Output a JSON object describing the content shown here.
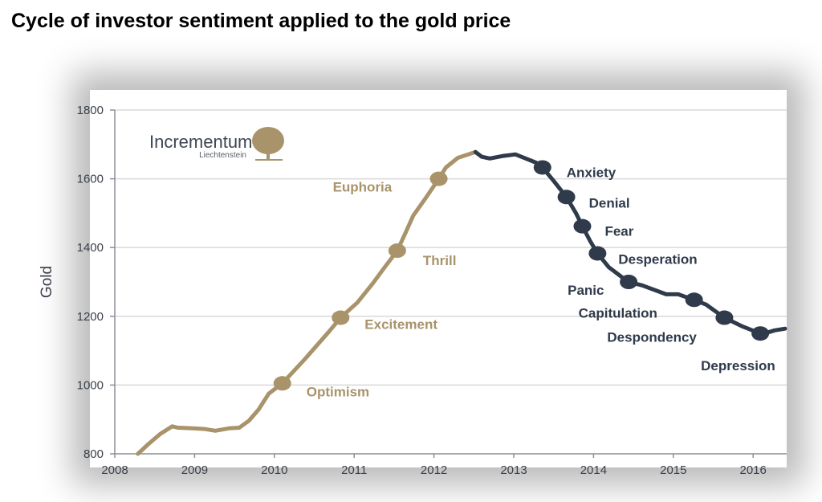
{
  "title": "Cycle of investor sentiment applied to the gold price",
  "logo": {
    "name": "Incrementum",
    "sub": "Liechtenstein",
    "icon": "tree-icon"
  },
  "colors": {
    "gold": "#a8936a",
    "dark": "#2f3a4b",
    "grid": "#d9d9d9",
    "axis": "#8a8f96"
  },
  "chart_data": {
    "type": "line",
    "title": "Cycle of investor sentiment applied to the gold price",
    "ylabel": "Gold",
    "xlabel": "",
    "xlim": [
      2008,
      2016.42
    ],
    "ylim": [
      800,
      1800
    ],
    "xticks": [
      "2008",
      "2009",
      "2010",
      "2011",
      "2012",
      "2013",
      "2014",
      "2015",
      "2016"
    ],
    "yticks": [
      "800",
      "1000",
      "1200",
      "1400",
      "1600",
      "1800"
    ],
    "grid": "horizontal",
    "series": [
      {
        "phase": "rising",
        "color": "gold",
        "points": [
          [
            2008.29,
            800
          ],
          [
            2008.42,
            828
          ],
          [
            2008.57,
            858
          ],
          [
            2008.72,
            880
          ],
          [
            2008.79,
            876
          ],
          [
            2008.98,
            874
          ],
          [
            2009.13,
            872
          ],
          [
            2009.26,
            867
          ],
          [
            2009.43,
            874
          ],
          [
            2009.56,
            876
          ],
          [
            2009.68,
            896
          ],
          [
            2009.8,
            928
          ],
          [
            2009.93,
            975
          ],
          [
            2010.1,
            1005
          ],
          [
            2010.38,
            1075
          ],
          [
            2010.69,
            1157
          ],
          [
            2010.83,
            1196
          ],
          [
            2011.04,
            1240
          ],
          [
            2011.24,
            1298
          ],
          [
            2011.39,
            1345
          ],
          [
            2011.54,
            1391
          ],
          [
            2011.64,
            1441
          ],
          [
            2011.74,
            1493
          ],
          [
            2011.89,
            1542
          ],
          [
            2012.06,
            1600
          ],
          [
            2012.15,
            1633
          ],
          [
            2012.3,
            1661
          ],
          [
            2012.52,
            1678
          ]
        ]
      },
      {
        "phase": "falling",
        "color": "dark",
        "points": [
          [
            2012.52,
            1678
          ],
          [
            2012.6,
            1664
          ],
          [
            2012.7,
            1659
          ],
          [
            2012.85,
            1666
          ],
          [
            2013.02,
            1671
          ],
          [
            2013.15,
            1659
          ],
          [
            2013.28,
            1647
          ],
          [
            2013.36,
            1633
          ],
          [
            2013.5,
            1594
          ],
          [
            2013.66,
            1547
          ],
          [
            2013.78,
            1500
          ],
          [
            2013.86,
            1462
          ],
          [
            2013.96,
            1418
          ],
          [
            2014.05,
            1383
          ],
          [
            2014.19,
            1343
          ],
          [
            2014.36,
            1313
          ],
          [
            2014.44,
            1300
          ],
          [
            2014.61,
            1290
          ],
          [
            2014.91,
            1264
          ],
          [
            2015.06,
            1264
          ],
          [
            2015.26,
            1248
          ],
          [
            2015.41,
            1234
          ],
          [
            2015.64,
            1196
          ],
          [
            2015.87,
            1170
          ],
          [
            2016.09,
            1150
          ]
        ]
      },
      {
        "phase": "recovery",
        "color": "gold",
        "points": [
          [
            2016.09,
            1150
          ],
          [
            2016.17,
            1152
          ]
        ]
      },
      {
        "phase": "recovery-dark",
        "color": "dark",
        "points": [
          [
            2016.17,
            1152
          ],
          [
            2016.27,
            1159
          ],
          [
            2016.4,
            1164
          ]
        ]
      }
    ],
    "annotations": [
      {
        "label": "Optimism",
        "x": 2010.1,
        "y": 1005,
        "color": "gold",
        "dx": 30,
        "dy": 16
      },
      {
        "label": "Excitement",
        "x": 2010.83,
        "y": 1196,
        "color": "gold",
        "dx": 30,
        "dy": 14
      },
      {
        "label": "Thrill",
        "x": 2011.54,
        "y": 1391,
        "color": "gold",
        "dx": 32,
        "dy": 18
      },
      {
        "label": "Euphoria",
        "x": 2012.06,
        "y": 1600,
        "color": "gold",
        "dx": -132,
        "dy": 16
      },
      {
        "label": "Anxiety",
        "x": 2013.36,
        "y": 1633,
        "color": "dark",
        "dx": 30,
        "dy": 12
      },
      {
        "label": "Denial",
        "x": 2013.66,
        "y": 1547,
        "color": "dark",
        "dx": 28,
        "dy": 13
      },
      {
        "label": "Fear",
        "x": 2013.86,
        "y": 1462,
        "color": "dark",
        "dx": 28,
        "dy": 12
      },
      {
        "label": "Desperation",
        "x": 2014.05,
        "y": 1383,
        "color": "dark",
        "dx": 26,
        "dy": 13
      },
      {
        "label": "Panic",
        "x": 2014.44,
        "y": 1300,
        "color": "dark",
        "dx": -76,
        "dy": 16
      },
      {
        "label": "Capitulation",
        "x": 2015.26,
        "y": 1248,
        "color": "dark",
        "dx": -144,
        "dy": 22
      },
      {
        "label": "Despondency",
        "x": 2015.64,
        "y": 1196,
        "color": "dark",
        "dx": -146,
        "dy": 30
      },
      {
        "label": "Depression",
        "x": 2016.09,
        "y": 1150,
        "color": "dark",
        "dx": -74,
        "dy": 46
      }
    ]
  }
}
